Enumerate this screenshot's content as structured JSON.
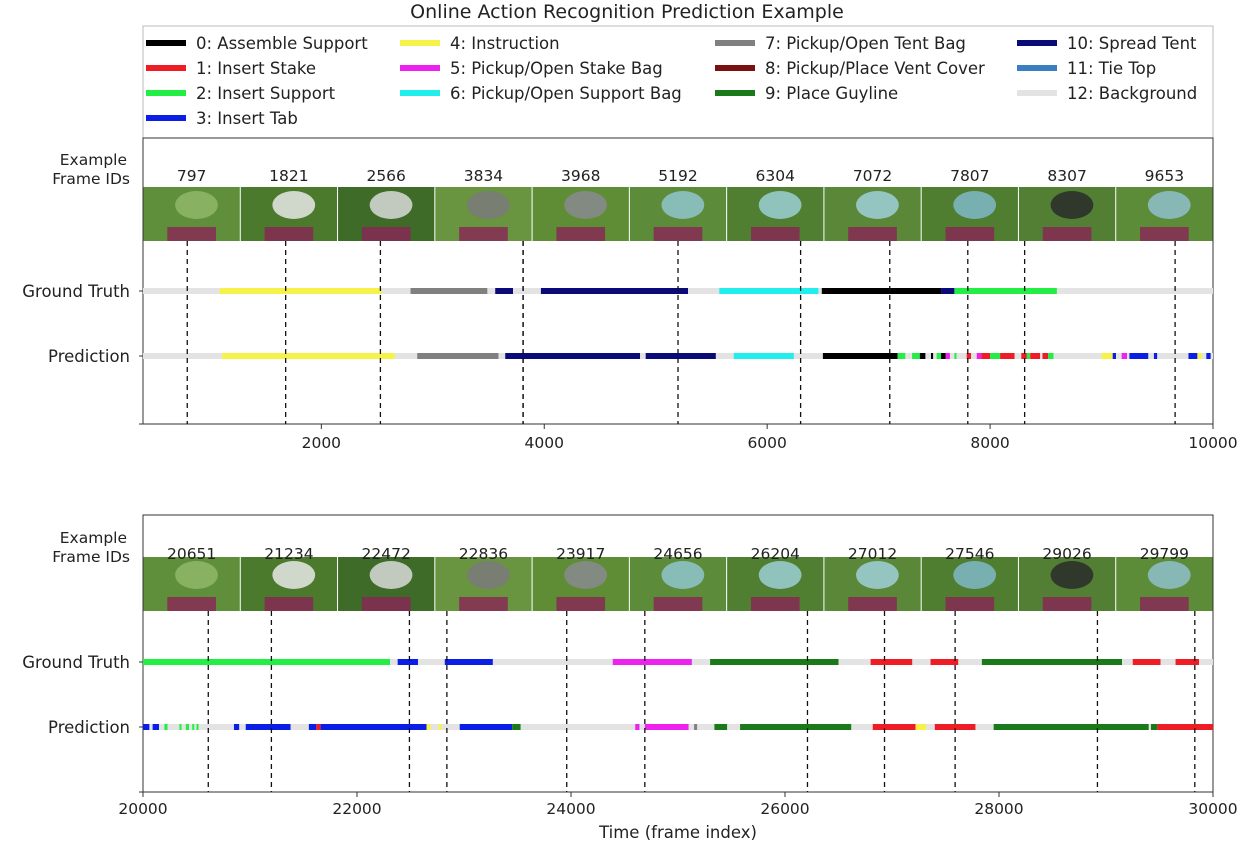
{
  "title": "Online Action Recognition Prediction Example",
  "colors": {
    "0": "#000000",
    "1": "#ee1c24",
    "2": "#22ee44",
    "3": "#0a1ee6",
    "4": "#f7f24a",
    "5": "#ee22ee",
    "6": "#22eeee",
    "7": "#808080",
    "8": "#7a1010",
    "9": "#1a7a1a",
    "10": "#0a0a78",
    "11": "#3a80c0",
    "12": "#e3e3e3"
  },
  "legend": {
    "columns": [
      [
        {
          "cls": 0,
          "label": "0: Assemble Support"
        },
        {
          "cls": 1,
          "label": "1: Insert Stake"
        },
        {
          "cls": 2,
          "label": "2: Insert Support"
        },
        {
          "cls": 3,
          "label": "3: Insert Tab"
        }
      ],
      [
        {
          "cls": 4,
          "label": "4: Instruction"
        },
        {
          "cls": 5,
          "label": "5: Pickup/Open Stake Bag"
        },
        {
          "cls": 6,
          "label": "6: Pickup/Open Support Bag"
        }
      ],
      [
        {
          "cls": 7,
          "label": "7: Pickup/Open Tent Bag"
        },
        {
          "cls": 8,
          "label": "8: Pickup/Place Vent Cover"
        },
        {
          "cls": 9,
          "label": "9: Place Guyline"
        }
      ],
      [
        {
          "cls": 10,
          "label": "10: Spread Tent"
        },
        {
          "cls": 11,
          "label": "11: Tie Top"
        },
        {
          "cls": 12,
          "label": "12: Background"
        }
      ]
    ]
  },
  "row_labels": {
    "frames": "Example\nFrame IDs",
    "gt": "Ground Truth",
    "pred": "Prediction"
  },
  "chart_data": [
    {
      "type": "timeline",
      "xlim": [
        400,
        10000
      ],
      "xticks": [
        2000,
        4000,
        6000,
        8000,
        10000
      ],
      "xlabel": "",
      "example_frames": [
        797,
        1821,
        2566,
        3834,
        3968,
        5192,
        6304,
        7072,
        7807,
        8307,
        9653
      ],
      "marker_frames": [
        797,
        1680,
        2530,
        3810,
        3810,
        5200,
        6300,
        7100,
        7800,
        8310,
        9660
      ],
      "ground_truth": [
        [
          400,
          1090,
          12
        ],
        [
          1090,
          2540,
          4
        ],
        [
          2540,
          2800,
          12
        ],
        [
          2800,
          3490,
          7
        ],
        [
          3490,
          3560,
          12
        ],
        [
          3560,
          3720,
          10
        ],
        [
          3720,
          3970,
          12
        ],
        [
          3970,
          5290,
          10
        ],
        [
          5290,
          5570,
          12
        ],
        [
          5570,
          6460,
          6
        ],
        [
          6460,
          6490,
          12
        ],
        [
          6490,
          7560,
          0
        ],
        [
          7560,
          7680,
          10
        ],
        [
          7680,
          8600,
          2
        ],
        [
          8600,
          10000,
          12
        ]
      ],
      "prediction": [
        [
          400,
          1110,
          12
        ],
        [
          1110,
          2660,
          4
        ],
        [
          2660,
          2860,
          12
        ],
        [
          2860,
          3590,
          7
        ],
        [
          3590,
          3650,
          12
        ],
        [
          3650,
          4860,
          10
        ],
        [
          4860,
          4910,
          12
        ],
        [
          4910,
          5540,
          10
        ],
        [
          5540,
          5700,
          12
        ],
        [
          5700,
          6240,
          6
        ],
        [
          6240,
          6500,
          12
        ],
        [
          6500,
          7170,
          0
        ],
        [
          7170,
          7240,
          2
        ],
        [
          7240,
          7300,
          12
        ],
        [
          7300,
          7370,
          2
        ],
        [
          7370,
          7420,
          0
        ],
        [
          7420,
          7470,
          12
        ],
        [
          7470,
          7490,
          0
        ],
        [
          7490,
          7520,
          12
        ],
        [
          7520,
          7560,
          2
        ],
        [
          7560,
          7600,
          0
        ],
        [
          7600,
          7640,
          5
        ],
        [
          7640,
          7680,
          12
        ],
        [
          7680,
          7700,
          2
        ],
        [
          7700,
          7790,
          12
        ],
        [
          7790,
          7830,
          1
        ],
        [
          7830,
          7880,
          12
        ],
        [
          7880,
          7920,
          5
        ],
        [
          7920,
          8000,
          1
        ],
        [
          8000,
          8090,
          2
        ],
        [
          8090,
          8220,
          1
        ],
        [
          8220,
          8280,
          12
        ],
        [
          8280,
          8330,
          1
        ],
        [
          8330,
          8360,
          2
        ],
        [
          8360,
          8450,
          1
        ],
        [
          8450,
          8470,
          12
        ],
        [
          8470,
          8520,
          1
        ],
        [
          8520,
          8570,
          2
        ],
        [
          8570,
          9000,
          12
        ],
        [
          9000,
          9100,
          4
        ],
        [
          9100,
          9130,
          3
        ],
        [
          9130,
          9180,
          12
        ],
        [
          9180,
          9230,
          5
        ],
        [
          9230,
          9250,
          12
        ],
        [
          9250,
          9420,
          3
        ],
        [
          9420,
          9470,
          12
        ],
        [
          9470,
          9500,
          3
        ],
        [
          9500,
          9780,
          12
        ],
        [
          9780,
          9860,
          3
        ],
        [
          9860,
          9900,
          4
        ],
        [
          9900,
          9940,
          12
        ],
        [
          9940,
          9980,
          3
        ],
        [
          9980,
          10000,
          12
        ]
      ]
    },
    {
      "type": "timeline",
      "xlim": [
        20000,
        30000
      ],
      "xticks": [
        20000,
        22000,
        24000,
        26000,
        28000,
        30000
      ],
      "xlabel": "Time (frame index)",
      "example_frames": [
        20651,
        21234,
        22472,
        22836,
        23917,
        24656,
        26204,
        27012,
        27546,
        29026,
        29799
      ],
      "marker_frames": [
        20610,
        21200,
        22490,
        22840,
        23960,
        24690,
        26210,
        26930,
        27590,
        28920,
        29830
      ],
      "ground_truth": [
        [
          20000,
          22310,
          2
        ],
        [
          22310,
          22380,
          12
        ],
        [
          22380,
          22570,
          3
        ],
        [
          22570,
          22820,
          12
        ],
        [
          22820,
          23270,
          3
        ],
        [
          23270,
          24390,
          12
        ],
        [
          24390,
          25130,
          5
        ],
        [
          25130,
          25300,
          12
        ],
        [
          25300,
          26500,
          9
        ],
        [
          26500,
          26800,
          12
        ],
        [
          26800,
          27190,
          1
        ],
        [
          27190,
          27360,
          12
        ],
        [
          27360,
          27620,
          1
        ],
        [
          27620,
          27840,
          12
        ],
        [
          27840,
          29150,
          9
        ],
        [
          29150,
          29250,
          12
        ],
        [
          29250,
          29510,
          1
        ],
        [
          29510,
          29650,
          12
        ],
        [
          29650,
          29870,
          1
        ],
        [
          29870,
          30000,
          12
        ]
      ],
      "prediction": [
        [
          20000,
          20060,
          3
        ],
        [
          20060,
          20090,
          12
        ],
        [
          20090,
          20150,
          3
        ],
        [
          20150,
          20200,
          12
        ],
        [
          20200,
          20230,
          2
        ],
        [
          20230,
          20340,
          12
        ],
        [
          20340,
          20360,
          2
        ],
        [
          20360,
          20400,
          12
        ],
        [
          20400,
          20430,
          2
        ],
        [
          20430,
          20460,
          12
        ],
        [
          20460,
          20480,
          2
        ],
        [
          20480,
          20500,
          12
        ],
        [
          20500,
          20520,
          2
        ],
        [
          20520,
          20850,
          12
        ],
        [
          20850,
          20900,
          3
        ],
        [
          20900,
          20960,
          12
        ],
        [
          20960,
          21380,
          3
        ],
        [
          21380,
          21550,
          12
        ],
        [
          21550,
          21620,
          3
        ],
        [
          21620,
          21660,
          1
        ],
        [
          21660,
          22650,
          3
        ],
        [
          22650,
          22690,
          4
        ],
        [
          22690,
          22760,
          12
        ],
        [
          22760,
          22790,
          4
        ],
        [
          22790,
          22960,
          12
        ],
        [
          22960,
          23450,
          3
        ],
        [
          23450,
          23530,
          9
        ],
        [
          23530,
          24600,
          12
        ],
        [
          24600,
          24640,
          5
        ],
        [
          24640,
          24690,
          12
        ],
        [
          24690,
          25100,
          5
        ],
        [
          25100,
          25150,
          12
        ],
        [
          25150,
          25180,
          7
        ],
        [
          25180,
          25340,
          12
        ],
        [
          25340,
          25460,
          9
        ],
        [
          25460,
          25580,
          12
        ],
        [
          25580,
          26620,
          9
        ],
        [
          26620,
          26820,
          12
        ],
        [
          26820,
          27220,
          1
        ],
        [
          27220,
          27320,
          4
        ],
        [
          27320,
          27400,
          12
        ],
        [
          27400,
          27780,
          1
        ],
        [
          27780,
          27950,
          12
        ],
        [
          27950,
          29400,
          9
        ],
        [
          29400,
          29420,
          12
        ],
        [
          29420,
          29480,
          9
        ],
        [
          29480,
          30000,
          1
        ]
      ]
    }
  ]
}
